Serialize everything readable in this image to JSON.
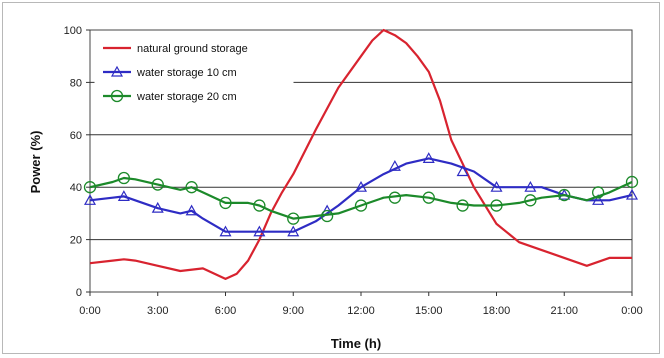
{
  "chart_data": {
    "type": "line",
    "xlabel": "Time (h)",
    "ylabel": "Power (%)",
    "ylim": [
      0,
      100
    ],
    "xlim": [
      0,
      24
    ],
    "y_ticks": [
      0,
      20,
      40,
      60,
      80,
      100
    ],
    "x_ticks": [
      {
        "value": 0,
        "label": "0:00"
      },
      {
        "value": 3,
        "label": "3:00"
      },
      {
        "value": 6,
        "label": "6:00"
      },
      {
        "value": 9,
        "label": "9:00"
      },
      {
        "value": 12,
        "label": "12:00"
      },
      {
        "value": 15,
        "label": "15:00"
      },
      {
        "value": 18,
        "label": "18:00"
      },
      {
        "value": 21,
        "label": "21:00"
      },
      {
        "value": 24,
        "label": "0:00"
      }
    ],
    "grid": "horizontal",
    "legend_position": "top-left",
    "series": [
      {
        "name": "natural ground storage",
        "color": "#d8232f",
        "marker": "none",
        "x": [
          0,
          1,
          1.5,
          2,
          3,
          4,
          5,
          6,
          6.5,
          7,
          7.5,
          8,
          8.5,
          9,
          10,
          11,
          12,
          12.5,
          13,
          13.5,
          14,
          14.5,
          15,
          15.5,
          16,
          17,
          18,
          19,
          20,
          21,
          22,
          23,
          24
        ],
        "y": [
          11,
          12,
          12.5,
          12,
          10,
          8,
          9,
          5,
          7,
          12,
          20,
          30,
          38,
          45,
          62,
          78,
          90,
          96,
          100,
          98,
          95,
          90,
          84,
          73,
          58,
          40,
          26,
          19,
          16,
          13,
          10,
          13,
          13
        ]
      },
      {
        "name": "water storage 10 cm",
        "color": "#2e2cc4",
        "marker": "triangle",
        "x": [
          0,
          1,
          1.5,
          2,
          3,
          4,
          4.5,
          5,
          6,
          7,
          8,
          9,
          10,
          11,
          12,
          13,
          14,
          15,
          16,
          17,
          18,
          19,
          20,
          21,
          22,
          23,
          24
        ],
        "y": [
          35,
          36,
          36.5,
          35,
          32,
          30,
          31,
          28,
          23,
          23,
          23,
          23,
          27,
          33,
          40,
          45,
          49,
          51,
          49,
          46,
          40,
          40,
          40,
          37,
          35,
          35,
          37
        ],
        "marker_x": [
          0,
          1.5,
          3,
          4.5,
          6,
          7.5,
          9,
          10.5,
          12,
          13.5,
          15,
          16.5,
          18,
          19.5,
          21,
          22.5,
          24
        ],
        "marker_y": [
          35,
          36.5,
          32,
          31,
          23,
          23,
          23,
          31,
          40,
          48,
          51,
          46,
          40,
          40,
          37,
          35,
          37
        ]
      },
      {
        "name": "water storage 20 cm",
        "color": "#1c8a2a",
        "marker": "circle",
        "x": [
          0,
          1,
          1.5,
          2,
          3,
          4,
          4.5,
          5,
          6,
          7,
          7.5,
          8,
          9,
          10,
          11,
          12,
          13,
          14,
          15,
          16,
          17,
          18,
          19,
          20,
          21,
          22,
          23,
          24
        ],
        "y": [
          40,
          42,
          43.5,
          43,
          41,
          39,
          40,
          38,
          34,
          34,
          33,
          31,
          28,
          29,
          30,
          33,
          36,
          37,
          36,
          34,
          33,
          33,
          34,
          36,
          37,
          35,
          38,
          42
        ],
        "marker_x": [
          0,
          1.5,
          3,
          4.5,
          6,
          7.5,
          9,
          10.5,
          12,
          13.5,
          15,
          16.5,
          18,
          19.5,
          21,
          22.5,
          24
        ],
        "marker_y": [
          40,
          43.5,
          41,
          40,
          34,
          33,
          28,
          29,
          33,
          36,
          36,
          33,
          33,
          35,
          37,
          38,
          42
        ]
      }
    ]
  }
}
